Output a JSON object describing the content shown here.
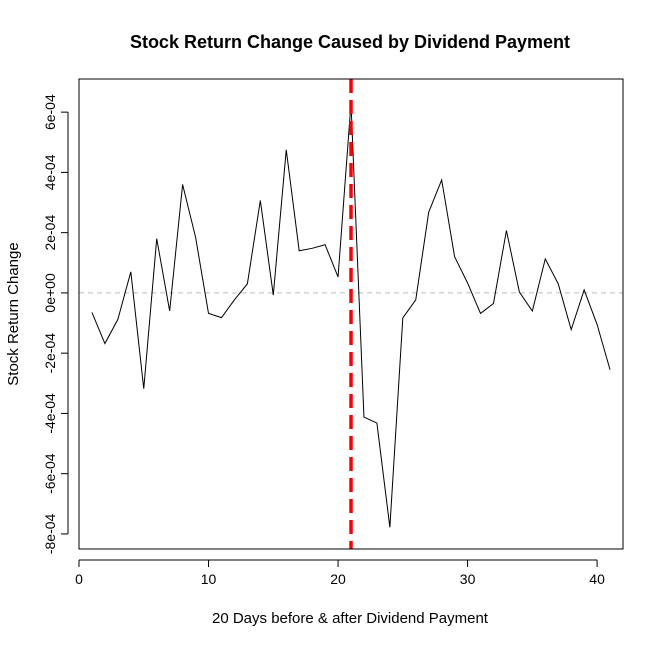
{
  "chart_data": {
    "type": "line",
    "title": "Stock Return Change Caused by Dividend Payment",
    "xlabel": "20 Days before & after Dividend Payment",
    "ylabel": "Stock Return Change",
    "xlim": [
      0,
      42
    ],
    "ylim": [
      -0.00085,
      0.00071
    ],
    "x_ticks": [
      0,
      10,
      20,
      30,
      40
    ],
    "x_tick_labels": [
      "0",
      "10",
      "20",
      "30",
      "40"
    ],
    "y_ticks": [
      -0.0008,
      -0.0006,
      -0.0004,
      -0.0002,
      0,
      0.0002,
      0.0004,
      0.0006
    ],
    "y_tick_labels": [
      "-8e-04",
      "-6e-04",
      "-4e-04",
      "-2e-04",
      "0e+00",
      "2e-04",
      "4e-04",
      "6e-04"
    ],
    "grid": false,
    "series": [
      {
        "color": "#000000",
        "x": [
          1,
          2,
          3,
          4,
          5,
          6,
          7,
          8,
          9,
          10,
          11,
          12,
          13,
          14,
          15,
          16,
          17,
          18,
          19,
          20,
          21,
          22,
          23,
          24,
          25,
          26,
          27,
          28,
          29,
          30,
          31,
          32,
          33,
          34,
          35,
          36,
          37,
          38,
          39,
          40,
          41
        ],
        "values": [
          -6.5e-05,
          -0.000168,
          -8.8e-05,
          7e-05,
          -0.000318,
          0.00018,
          -6e-05,
          0.00036,
          0.000185,
          -6.8e-05,
          -8.2e-05,
          -2.3e-05,
          3e-05,
          0.000307,
          -7e-06,
          0.000475,
          0.00014,
          0.000148,
          0.00016,
          5.3e-05,
          0.00063,
          -0.000412,
          -0.000432,
          -0.000778,
          -8.3e-05,
          -2.3e-05,
          0.000268,
          0.000375,
          0.00012,
          3.3e-05,
          -6.8e-05,
          -3.5e-05,
          0.000207,
          3e-06,
          -6e-05,
          0.000113,
          3e-05,
          -0.000122,
          1e-05,
          -0.000105,
          -0.000255
        ]
      }
    ],
    "reference_lines": [
      {
        "orientation": "horizontal",
        "value": 0,
        "color": "#bebebe",
        "style": "dashed"
      },
      {
        "orientation": "vertical",
        "value": 21,
        "color": "#ff0000",
        "style": "dashed"
      }
    ]
  }
}
